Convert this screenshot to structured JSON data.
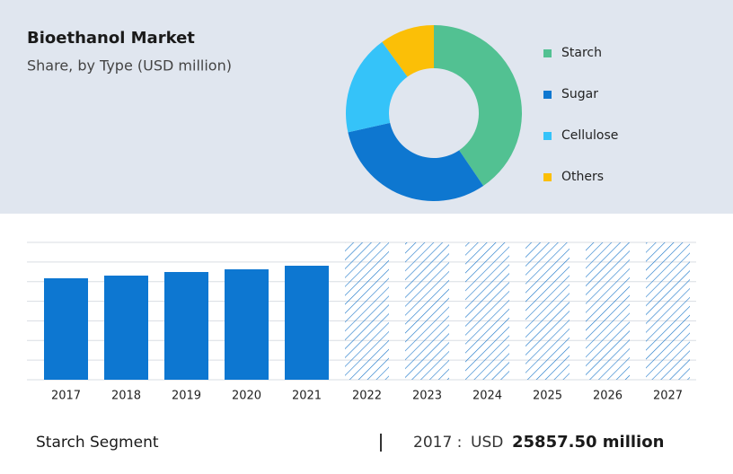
{
  "chart_data": [
    {
      "type": "donut",
      "title": "Bioethanol Market",
      "subtitle": "Share, by Type (USD million)",
      "categories": [
        "Starch",
        "Sugar",
        "Cellulose",
        "Others"
      ],
      "values": [
        40.5,
        31,
        18.5,
        10
      ],
      "colors": [
        "#52c192",
        "#0e77d0",
        "#35c3f9",
        "#fbbf07"
      ],
      "legend": "right"
    },
    {
      "type": "bar",
      "categories": [
        "2017",
        "2018",
        "2019",
        "2020",
        "2021",
        "2022",
        "2023",
        "2024",
        "2025",
        "2026",
        "2027"
      ],
      "values": [
        25857.5,
        26536,
        27450,
        28137,
        29052,
        null,
        null,
        null,
        null,
        null,
        null
      ],
      "color": "#0d77d1",
      "ylim": [
        0,
        35000
      ],
      "yticks": [
        0,
        5000,
        10000,
        15000,
        20000,
        25000,
        30000,
        35000
      ],
      "grid": true
    }
  ],
  "footer": {
    "segment": "Starch Segment",
    "year": "2017 :",
    "currency": "USD",
    "value": "25857.50 million"
  }
}
